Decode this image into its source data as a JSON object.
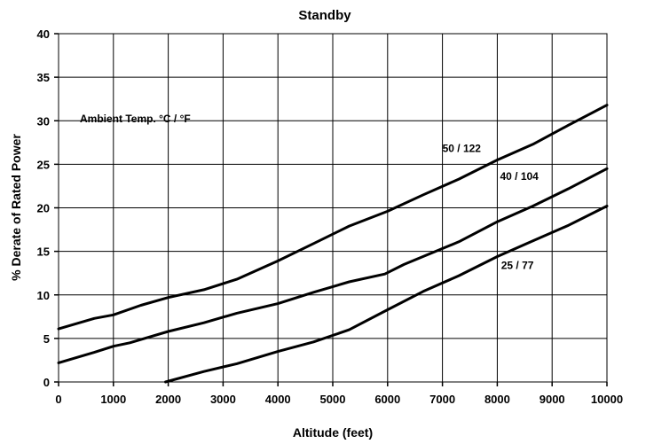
{
  "chart_data": {
    "type": "line",
    "title": "Standby",
    "xlabel": "Altitude (feet)",
    "ylabel": "% Derate of Rated Power",
    "xlim": [
      0,
      10000
    ],
    "ylim": [
      0,
      40
    ],
    "xticks": [
      0,
      1000,
      2000,
      3000,
      4000,
      5000,
      6000,
      7000,
      8000,
      9000,
      10000
    ],
    "yticks": [
      0,
      5,
      10,
      15,
      20,
      25,
      30,
      35,
      40
    ],
    "grid": true,
    "legend_title": "Ambient Temp.  °C / °F",
    "series": [
      {
        "name": "50 / 122",
        "x": [
          0,
          650,
          1000,
          1500,
          2000,
          2650,
          3250,
          4000,
          4650,
          5300,
          6000,
          6650,
          7300,
          8000,
          8650,
          9300,
          10000
        ],
        "y": [
          6.1,
          7.3,
          7.7,
          8.8,
          9.7,
          10.6,
          11.8,
          13.9,
          15.9,
          17.9,
          19.6,
          21.5,
          23.3,
          25.5,
          27.3,
          29.5,
          31.8
        ]
      },
      {
        "name": "40 / 104",
        "x": [
          0,
          650,
          1000,
          1300,
          2000,
          2650,
          3250,
          4000,
          4650,
          5300,
          5950,
          6300,
          7300,
          8000,
          8650,
          9300,
          10000
        ],
        "y": [
          2.2,
          3.4,
          4.1,
          4.5,
          5.8,
          6.8,
          7.9,
          9.0,
          10.3,
          11.5,
          12.4,
          13.5,
          16.1,
          18.4,
          20.2,
          22.2,
          24.5
        ]
      },
      {
        "name": "25 / 77",
        "x": [
          1950,
          2650,
          3250,
          4000,
          4650,
          5300,
          6000,
          6650,
          7300,
          8000,
          8650,
          9300,
          10000
        ],
        "y": [
          0,
          1.2,
          2.1,
          3.5,
          4.6,
          6.0,
          8.3,
          10.4,
          12.2,
          14.4,
          16.2,
          18.0,
          20.2
        ]
      }
    ]
  }
}
